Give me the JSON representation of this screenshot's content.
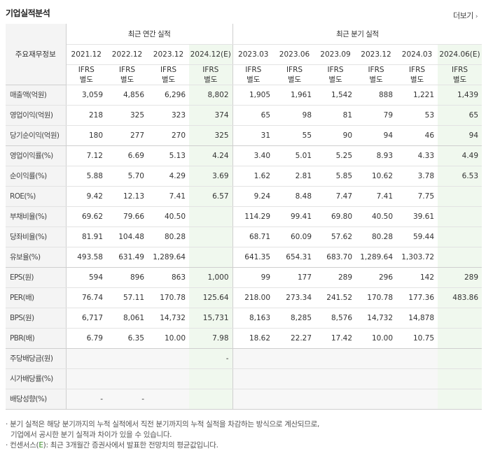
{
  "title": "기업실적분석",
  "more_label": "더보기",
  "more_icon": "chevron-right-icon",
  "stub_header": "주요재무정보",
  "groups": {
    "annual": "최근 연간 실적",
    "quarter": "최근 분기 실적"
  },
  "periods": [
    "2021.12",
    "2022.12",
    "2023.12",
    "2024.12(E)",
    "2023.03",
    "2023.06",
    "2023.09",
    "2023.12",
    "2024.03",
    "2024.06(E)"
  ],
  "ifrs_label": "IFRS",
  "ifrs_sub": "별도",
  "rows": [
    {
      "label": "매출액(억원)",
      "values": [
        "3,059",
        "4,856",
        "6,296",
        "8,802",
        "1,905",
        "1,961",
        "1,542",
        "888",
        "1,221",
        "1,439"
      ]
    },
    {
      "label": "영업이익(억원)",
      "values": [
        "218",
        "325",
        "323",
        "374",
        "65",
        "98",
        "81",
        "79",
        "53",
        "65"
      ]
    },
    {
      "label": "당기순이익(억원)",
      "values": [
        "180",
        "277",
        "270",
        "325",
        "31",
        "55",
        "90",
        "94",
        "46",
        "94"
      ]
    },
    {
      "label": "영업이익률(%)",
      "values": [
        "7.12",
        "6.69",
        "5.13",
        "4.24",
        "3.40",
        "5.01",
        "5.25",
        "8.93",
        "4.33",
        "4.49"
      ]
    },
    {
      "label": "순이익률(%)",
      "values": [
        "5.88",
        "5.70",
        "4.29",
        "3.69",
        "1.62",
        "2.81",
        "5.85",
        "10.62",
        "3.78",
        "6.53"
      ]
    },
    {
      "label": "ROE(%)",
      "values": [
        "9.42",
        "12.13",
        "7.41",
        "6.57",
        "9.24",
        "8.48",
        "7.47",
        "7.41",
        "7.75",
        ""
      ]
    },
    {
      "label": "부채비율(%)",
      "values": [
        "69.62",
        "79.66",
        "40.50",
        "",
        "114.29",
        "99.41",
        "69.80",
        "40.50",
        "39.61",
        ""
      ]
    },
    {
      "label": "당좌비율(%)",
      "values": [
        "81.91",
        "104.48",
        "80.28",
        "",
        "68.71",
        "60.09",
        "57.62",
        "80.28",
        "59.44",
        ""
      ]
    },
    {
      "label": "유보율(%)",
      "values": [
        "493.58",
        "631.49",
        "1,289.64",
        "",
        "641.35",
        "654.31",
        "683.70",
        "1,289.64",
        "1,303.72",
        ""
      ]
    },
    {
      "label": "EPS(원)",
      "values": [
        "594",
        "896",
        "863",
        "1,000",
        "99",
        "177",
        "289",
        "296",
        "142",
        "289"
      ]
    },
    {
      "label": "PER(배)",
      "values": [
        "76.74",
        "57.11",
        "170.78",
        "125.64",
        "218.00",
        "273.34",
        "241.52",
        "170.78",
        "177.36",
        "483.86"
      ]
    },
    {
      "label": "BPS(원)",
      "values": [
        "6,717",
        "8,061",
        "14,732",
        "15,731",
        "8,163",
        "8,285",
        "8,576",
        "14,732",
        "14,878",
        ""
      ]
    },
    {
      "label": "PBR(배)",
      "values": [
        "6.79",
        "6.35",
        "10.00",
        "7.98",
        "18.62",
        "22.27",
        "17.42",
        "10.00",
        "10.75",
        ""
      ]
    },
    {
      "label": "주당배당금(원)",
      "values": [
        "",
        "",
        "",
        "-",
        "",
        "",
        "",
        "",
        "",
        ""
      ]
    },
    {
      "label": "시가배당률(%)",
      "values": [
        "",
        "",
        "",
        "",
        "",
        "",
        "",
        "",
        "",
        ""
      ]
    },
    {
      "label": "배당성향(%)",
      "values": [
        "-",
        "-",
        "",
        "",
        "",
        "",
        "",
        "",
        "",
        ""
      ]
    }
  ],
  "notes": {
    "line1": "분기 실적은 해당 분기까지의 누적 실적에서 직전 분기까지의 누적 실적을 차감하는 방식으로 계산되므로,",
    "line2": "기업에서 공시한 분기 실적과 차이가 있을 수 있습니다.",
    "line3_prefix": "컨센서스(",
    "line3_e": "E",
    "line3_suffix": "): 최근 3개월간 증권사에서 발표한 전망치의 평균값입니다."
  }
}
